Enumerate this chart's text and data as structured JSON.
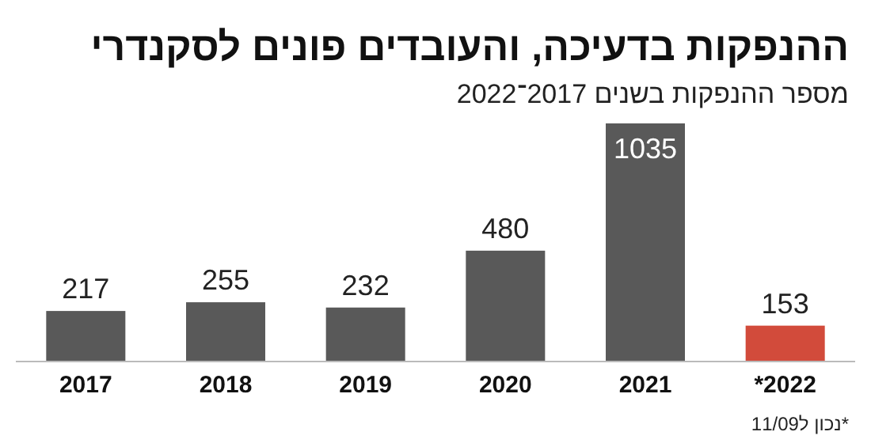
{
  "chart_data": {
    "type": "bar",
    "title": "ההנפקות בדעיכה, והעובדים פונים לסקנדרי",
    "subtitle": "מספר ההנפקות בשנים 2017־2022",
    "categories": [
      "2017",
      "2018",
      "2019",
      "2020",
      "2021",
      "*2022"
    ],
    "values": [
      217,
      255,
      232,
      480,
      1035,
      153
    ],
    "colors": [
      "#595959",
      "#595959",
      "#595959",
      "#595959",
      "#595959",
      "#d24b3b"
    ],
    "data_labels": true,
    "relative": false,
    "annotations": [
      "*נכון ל11/09"
    ]
  }
}
